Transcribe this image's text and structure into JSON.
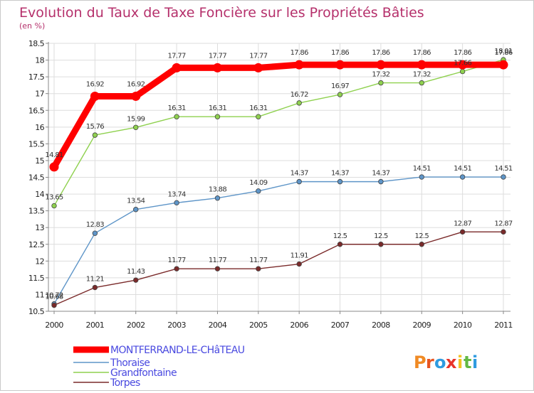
{
  "chart_data": {
    "type": "line",
    "title": "Evolution du Taux de Taxe Foncière sur les Propriétés Bâties",
    "ylabel": "(en %)",
    "xlabel": "",
    "x": [
      "2000",
      "2001",
      "2002",
      "2003",
      "2004",
      "2005",
      "2006",
      "2007",
      "2008",
      "2009",
      "2010",
      "2011"
    ],
    "ylim": [
      10.5,
      18.5
    ],
    "yticks": [
      "10.5",
      "11",
      "11.5",
      "12",
      "12.5",
      "13",
      "13.5",
      "14",
      "14.5",
      "15",
      "15.5",
      "16",
      "16.5",
      "17",
      "17.5",
      "18",
      "18.5"
    ],
    "grid": true,
    "series": [
      {
        "name": "MONTFERRAND-LE-CHâTEAU",
        "color": "#ff0000",
        "values": [
          14.81,
          16.92,
          16.92,
          17.77,
          17.77,
          17.77,
          17.86,
          17.86,
          17.86,
          17.86,
          17.86,
          17.86
        ],
        "labels": [
          "14.81",
          "16.92",
          "16.92",
          "17.77",
          "17.77",
          "17.77",
          "17.86",
          "17.86",
          "17.86",
          "17.86",
          "17.86",
          "17.86"
        ]
      },
      {
        "name": "Thoraise",
        "color": "#5e95c8",
        "values": [
          10.72,
          12.83,
          13.54,
          13.74,
          13.88,
          14.09,
          14.37,
          14.37,
          14.37,
          14.51,
          14.51,
          14.51
        ],
        "labels": [
          "10.72",
          "12.83",
          "13.54",
          "13.74",
          "13.88",
          "14.09",
          "14.37",
          "14.37",
          "14.37",
          "14.51",
          "14.51",
          "14.51"
        ]
      },
      {
        "name": "Grandfontaine",
        "color": "#8fd14f",
        "values": [
          13.65,
          15.76,
          15.99,
          16.31,
          16.31,
          16.31,
          16.72,
          16.97,
          17.32,
          17.32,
          17.66,
          18.01
        ],
        "labels": [
          "13.65",
          "15.76",
          "15.99",
          "16.31",
          "16.31",
          "16.31",
          "16.72",
          "16.97",
          "17.32",
          "17.32",
          "17.66",
          "18.01"
        ]
      },
      {
        "name": "Torpes",
        "color": "#7a2a2a",
        "values": [
          10.68,
          11.21,
          11.43,
          11.77,
          11.77,
          11.77,
          11.91,
          12.5,
          12.5,
          12.5,
          12.87,
          12.87
        ],
        "labels": [
          "10.68",
          "11.21",
          "11.43",
          "11.77",
          "11.77",
          "11.77",
          "11.91",
          "12.5",
          "12.5",
          "12.5",
          "12.87",
          "12.87"
        ]
      }
    ],
    "legend_position": "bottom-left"
  },
  "logo": {
    "letters": [
      "P",
      "r",
      "o",
      "x",
      "i",
      "t",
      "i"
    ],
    "colors": [
      "#f08a24",
      "#e8541f",
      "#2f9be0",
      "#e8332a",
      "#f3c222",
      "#63b844",
      "#2f9be0"
    ]
  }
}
